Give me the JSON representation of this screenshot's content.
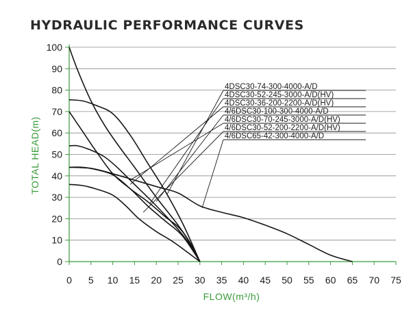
{
  "header": {
    "title": "HYDRAULIC PERFORMANCE CURVES"
  },
  "chart_data": {
    "type": "line",
    "xlabel": "FLOW(m³/h)",
    "ylabel": "TOTAL HEAD(m)",
    "xlim": [
      0,
      75
    ],
    "ylim": [
      0,
      100
    ],
    "xticks": [
      0,
      5,
      10,
      15,
      20,
      25,
      30,
      35,
      40,
      45,
      50,
      55,
      60,
      65,
      70,
      75
    ],
    "yticks": [
      0,
      10,
      20,
      30,
      40,
      50,
      60,
      70,
      80,
      90,
      100
    ],
    "grid": "horizontal",
    "axis_color": "#3a9a3a",
    "series": [
      {
        "name": "4DSC30-74-300-4000-A/D",
        "x": [
          0,
          2,
          5,
          8,
          11,
          15,
          20,
          25,
          28,
          30
        ],
        "y": [
          100,
          89,
          75,
          64,
          55,
          44,
          30,
          17,
          8,
          0
        ]
      },
      {
        "name": "4DSC30-52-245-3000-A/D(HV)",
        "x": [
          0,
          3,
          6,
          10,
          14,
          18,
          22,
          26,
          30
        ],
        "y": [
          75.5,
          75,
          73,
          69,
          59,
          46,
          33,
          18,
          0
        ]
      },
      {
        "name": "4DSC30-36-200-2200-A/D(HV)",
        "x": [
          0,
          3,
          6,
          10,
          14,
          18,
          22,
          26,
          30
        ],
        "y": [
          70,
          61,
          52,
          41,
          34,
          28,
          21,
          14,
          0
        ]
      },
      {
        "name": "4/6DSC30-100-300-4000-A/D",
        "x": [
          0,
          2,
          5,
          8,
          11,
          15,
          20,
          25,
          28,
          30
        ],
        "y": [
          54,
          54,
          52,
          49,
          44,
          36,
          26,
          15,
          7,
          0
        ]
      },
      {
        "name": "4/6DSC30-70-245-3000-A/D(HV)",
        "x": [
          0,
          3,
          6,
          10,
          14,
          18,
          22,
          26,
          30
        ],
        "y": [
          44,
          44,
          43,
          40.5,
          34,
          26,
          19,
          12,
          0
        ]
      },
      {
        "name": "4/6DSC30-52-200-2200-A/D(HV)",
        "x": [
          0,
          3,
          6,
          10,
          13,
          16,
          20,
          24,
          30
        ],
        "y": [
          36,
          35.5,
          34,
          31,
          26,
          20,
          14,
          9,
          0
        ]
      },
      {
        "name": "4/6DSC65-42-300-4000-A/D",
        "x": [
          0,
          5,
          10,
          15,
          20,
          25,
          30,
          35,
          40,
          45,
          50,
          55,
          60,
          65
        ],
        "y": [
          44,
          43.5,
          41,
          38,
          35,
          32,
          26,
          23,
          20.5,
          17,
          13,
          8,
          3,
          0
        ]
      }
    ],
    "callouts": [
      {
        "series": 0,
        "anchor": [
          22.5,
          31.5
        ]
      },
      {
        "series": 1,
        "anchor": [
          18.5,
          27
        ]
      },
      {
        "series": 2,
        "anchor": [
          14,
          36
        ]
      },
      {
        "series": 3,
        "anchor": [
          20,
          28
        ]
      },
      {
        "series": 4,
        "anchor": [
          14,
          38
        ]
      },
      {
        "series": 5,
        "anchor": [
          17,
          23
        ]
      },
      {
        "series": 6,
        "anchor": [
          30.5,
          25
        ]
      }
    ]
  }
}
